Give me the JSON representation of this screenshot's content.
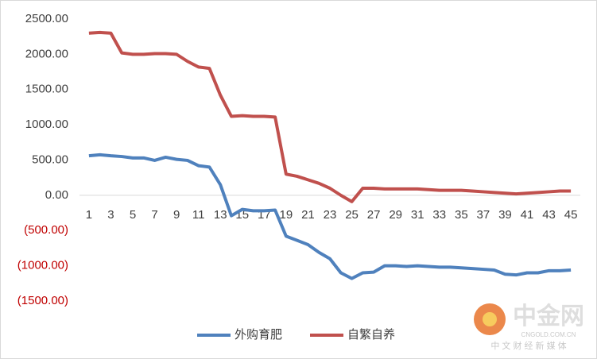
{
  "chart_data": {
    "type": "line",
    "categories": [
      1,
      null,
      3,
      null,
      5,
      null,
      7,
      null,
      9,
      null,
      11,
      null,
      13,
      null,
      15,
      null,
      17,
      null,
      19,
      null,
      21,
      null,
      23,
      null,
      25,
      null,
      27,
      null,
      29,
      null,
      31,
      null,
      33,
      null,
      35,
      null,
      37,
      null,
      39,
      null,
      41,
      null,
      43,
      null,
      45
    ],
    "series": [
      {
        "name": "外购育肥",
        "color": "#4f81bd",
        "values": [
          560,
          575,
          560,
          550,
          530,
          530,
          495,
          540,
          510,
          495,
          420,
          400,
          150,
          -290,
          -200,
          -220,
          -220,
          -210,
          -580,
          -640,
          -700,
          -810,
          -900,
          -1100,
          -1180,
          -1100,
          -1090,
          -1000,
          -1000,
          -1010,
          -1000,
          -1010,
          -1020,
          -1020,
          -1030,
          -1040,
          -1050,
          -1060,
          -1120,
          -1130,
          -1100,
          -1100,
          -1070,
          -1070,
          -1060
        ]
      },
      {
        "name": "自繁自养",
        "color": "#c0504d",
        "values": [
          2300,
          2310,
          2300,
          2020,
          2000,
          2000,
          2010,
          2010,
          2000,
          1900,
          1820,
          1800,
          1420,
          1120,
          1130,
          1120,
          1120,
          1110,
          300,
          270,
          220,
          170,
          100,
          0,
          -90,
          100,
          100,
          90,
          90,
          90,
          90,
          80,
          70,
          70,
          70,
          60,
          50,
          40,
          30,
          20,
          30,
          40,
          50,
          60,
          60
        ]
      }
    ],
    "ylim": [
      -1500,
      2500
    ],
    "yticks": [
      {
        "value": -1500,
        "label": "(1500.00)"
      },
      {
        "value": -1000,
        "label": "(1000.00)"
      },
      {
        "value": -500,
        "label": "(500.00)"
      },
      {
        "value": 0,
        "label": "0.00"
      },
      {
        "value": 500,
        "label": "500.00"
      },
      {
        "value": 1000,
        "label": "1000.00"
      },
      {
        "value": 1500,
        "label": "1500.00"
      },
      {
        "value": 2000,
        "label": "2000.00"
      },
      {
        "value": 2500,
        "label": "2500.00"
      }
    ],
    "negative_label_color": "#c00000",
    "grid": false,
    "legend": "bottom"
  },
  "watermark": {
    "name": "中金网",
    "domain": "CNGOLD.COM.CN",
    "tagline": "中 文 财 经 新 媒 体"
  }
}
